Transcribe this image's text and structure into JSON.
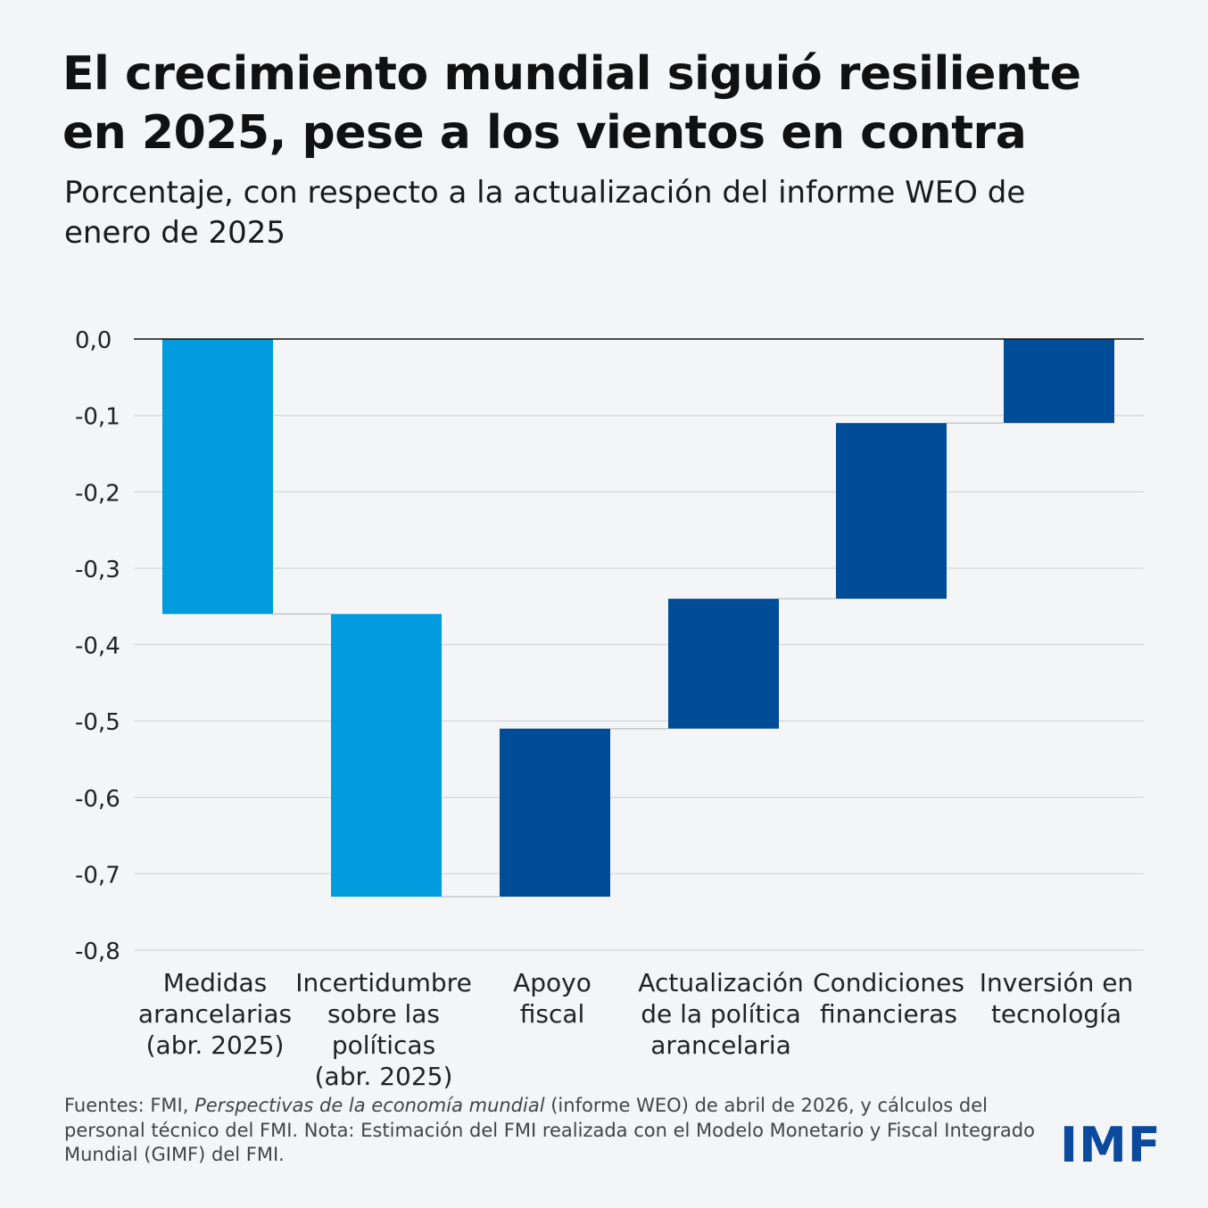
{
  "title": "El crecimiento mundial siguió resiliente en 2025, pese a los vientos en contra",
  "subtitle": "Porcentaje, con respecto a la actualización del informe WEO de enero de 2025",
  "chart_data": {
    "type": "bar",
    "subtype": "waterfall",
    "ylim": [
      -0.8,
      0.0
    ],
    "yticks": [
      "0,0",
      "-0,1",
      "-0,2",
      "-0,3",
      "-0,4",
      "-0,5",
      "-0,6",
      "-0,7",
      "-0,8"
    ],
    "ytick_values": [
      0.0,
      -0.1,
      -0.2,
      -0.3,
      -0.4,
      -0.5,
      -0.6,
      -0.7,
      -0.8
    ],
    "grid": true,
    "categories": [
      [
        "Medidas",
        "arancelarias",
        "(abr. 2025)"
      ],
      [
        "Incertidumbre",
        "sobre las",
        "políticas",
        "(abr. 2025)"
      ],
      [
        "Apoyo",
        "fiscal"
      ],
      [
        "Actualización",
        "de la política",
        "arancelaria"
      ],
      [
        "Condiciones",
        "financieras"
      ],
      [
        "Inversión en",
        "tecnología"
      ]
    ],
    "bars": [
      {
        "start": 0.0,
        "end": -0.36,
        "change": -0.36,
        "color": "#009cde"
      },
      {
        "start": -0.36,
        "end": -0.73,
        "change": -0.37,
        "color": "#009cde"
      },
      {
        "start": -0.73,
        "end": -0.51,
        "change": 0.22,
        "color": "#004c97"
      },
      {
        "start": -0.51,
        "end": -0.34,
        "change": 0.17,
        "color": "#004c97"
      },
      {
        "start": -0.34,
        "end": -0.11,
        "change": 0.23,
        "color": "#004c97"
      },
      {
        "start": -0.11,
        "end": 0.0,
        "change": 0.11,
        "color": "#004c97"
      }
    ]
  },
  "footer": {
    "prefix": "Fuentes: FMI, ",
    "italic": "Perspectivas de la economía mundial",
    "suffix": " (informe WEO) de abril de 2026, y cálculos del personal técnico del FMI. Nota: Estimación del FMI realizada con el Modelo Monetario y Fiscal Integrado Mundial (GIMF) del FMI."
  },
  "logo": "IMF",
  "colors": {
    "negative": "#009cde",
    "positive": "#004c97",
    "logo": "#0b4a9c"
  }
}
